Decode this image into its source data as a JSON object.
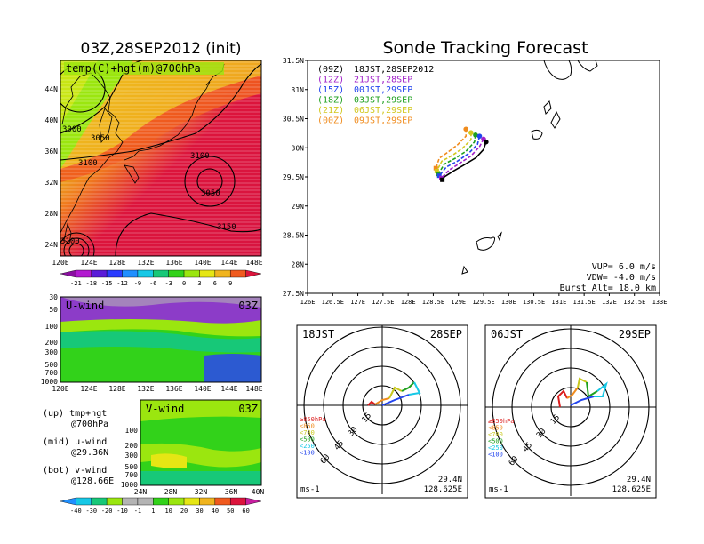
{
  "left_title": "03Z,28SEP2012 (init)",
  "right_title": "Sonde Tracking Forecast",
  "map_top": {
    "label": "temp(C)+hgt(m)@700hPa",
    "lat_labels": [
      "44N",
      "40N",
      "36N",
      "32N",
      "28N",
      "24N"
    ],
    "lon_labels": [
      "120E",
      "124E",
      "128E",
      "132E",
      "136E",
      "140E",
      "144E",
      "148E"
    ],
    "contour_labels": [
      "3000",
      "3050",
      "3100",
      "3100",
      "3050",
      "3150",
      "3100"
    ],
    "colorbar_labels": [
      "-21",
      "-18",
      "-15",
      "-12",
      "-9",
      "-6",
      "-3",
      "0",
      "3",
      "6",
      "9"
    ],
    "colorbar_colors": [
      "#8a0fa0",
      "#b21ad0",
      "#5a1cd8",
      "#2a3cff",
      "#1f8fff",
      "#16c8e6",
      "#17c878",
      "#32d21a",
      "#9be60f",
      "#e6e614",
      "#f0b41e",
      "#f05a1e",
      "#dc143c"
    ]
  },
  "uwind": {
    "label": "U-wind",
    "time": "03Z",
    "p_labels": [
      "30",
      "50",
      "100",
      "200",
      "300",
      "500",
      "700",
      "1000"
    ],
    "lon_labels": [
      "120E",
      "124E",
      "128E",
      "132E",
      "136E",
      "140E",
      "144E",
      "148E"
    ]
  },
  "vwind": {
    "label": "V-wind",
    "time": "03Z",
    "p_labels": [
      "100",
      "200",
      "300",
      "500",
      "700",
      "1000"
    ],
    "lat_labels": [
      "24N",
      "28N",
      "32N",
      "36N",
      "40N"
    ]
  },
  "legend": {
    "l1a": "(up) tmp+hgt",
    "l1b": "@700hPa",
    "l2a": "(mid) u-wind",
    "l2b": "@29.36N",
    "l3a": "(bot) v-wind",
    "l3b": "@128.66E"
  },
  "bottom_colorbar": {
    "labels": [
      "-40",
      "-30",
      "-20",
      "-10",
      "-1",
      "1",
      "10",
      "20",
      "30",
      "40",
      "50",
      "60"
    ],
    "colors": [
      "#1f8fff",
      "#16c8e6",
      "#17c878",
      "#9be60f",
      "#b4b4b4",
      "#b4b4b4",
      "#32d21a",
      "#9be60f",
      "#e6e614",
      "#f0b41e",
      "#f05a1e",
      "#dc143c",
      "#c81ea0"
    ]
  },
  "track_map": {
    "lat_labels": [
      "31.5N",
      "31N",
      "30.5N",
      "30N",
      "29.5N",
      "29N",
      "28.5N",
      "28N",
      "27.5N"
    ],
    "lon_labels": [
      "126E",
      "126.5E",
      "127E",
      "127.5E",
      "128E",
      "128.5E",
      "129E",
      "129.5E",
      "130E",
      "130.5E",
      "131E",
      "131.5E",
      "132E",
      "132.5E",
      "133E"
    ],
    "runs": [
      {
        "a": "(09Z)",
        "b": "18JST,28SEP2012",
        "color": "#000000"
      },
      {
        "a": "(12Z)",
        "b": "21JST,28SEP",
        "color": "#a020c8"
      },
      {
        "a": "(15Z)",
        "b": "00JST,29SEP",
        "color": "#2244ee"
      },
      {
        "a": "(18Z)",
        "b": "03JST,29SEP",
        "color": "#1ea01e"
      },
      {
        "a": "(21Z)",
        "b": "06JST,29SEP",
        "color": "#d2c81e"
      },
      {
        "a": "(00Z)",
        "b": "09JST,29SEP",
        "color": "#f08c1e"
      }
    ],
    "vup": "VUP= 6.0 m/s",
    "vdw": "VDW= -4.0 m/s",
    "burst": "Burst Alt= 18.0 km"
  },
  "hodo_left": {
    "t1": "18JST",
    "t2": "28SEP",
    "lat": "29.4N",
    "lon": "128.625E",
    "unit": "ms-1"
  },
  "hodo_right": {
    "t1": "06JST",
    "t2": "29SEP",
    "lat": "29.4N",
    "lon": "128.625E",
    "unit": "ms-1"
  },
  "hodo_rings": [
    "15",
    "30",
    "45",
    "60"
  ],
  "hodo_levels": [
    {
      "label": "≥850hPa",
      "color": "#dc1e1e"
    },
    {
      "label": "<850",
      "color": "#f08c1e"
    },
    {
      "label": "<700",
      "color": "#c8c81e"
    },
    {
      "label": "<500",
      "color": "#1ea01e"
    },
    {
      "label": "<250",
      "color": "#16c8e6"
    },
    {
      "label": "<100",
      "color": "#2244ee"
    }
  ],
  "chart_data": {
    "type": "line",
    "title": "Sonde Tracking Forecast",
    "xlabel": "",
    "ylabel": "",
    "xlim": [
      126,
      133
    ],
    "ylim": [
      27.5,
      31.5
    ],
    "grid": false,
    "legend_placement": "top-left",
    "series": [
      {
        "name": "(09Z) 18JST,28SEP2012",
        "color": "#000000",
        "x": [
          129.55,
          129.5,
          129.35,
          129.1,
          128.9,
          128.72,
          128.68
        ],
        "y": [
          30.1,
          29.97,
          29.83,
          29.7,
          29.6,
          29.5,
          29.45
        ]
      },
      {
        "name": "(12Z) 21JST,28SEP",
        "color": "#a020c8",
        "x": [
          129.5,
          129.42,
          129.25,
          129.02,
          128.82,
          128.66
        ],
        "y": [
          30.15,
          30.02,
          29.86,
          29.73,
          29.62,
          29.48
        ]
      },
      {
        "name": "(15Z) 00JST,29SEP",
        "color": "#2244ee",
        "x": [
          129.42,
          129.38,
          129.2,
          128.98,
          128.76,
          128.62
        ],
        "y": [
          30.2,
          30.06,
          29.9,
          29.77,
          29.67,
          29.52
        ]
      },
      {
        "name": "(18Z) 03JST,29SEP",
        "color": "#1ea01e",
        "x": [
          129.34,
          129.32,
          129.15,
          128.94,
          128.72,
          128.6
        ],
        "y": [
          30.22,
          30.1,
          29.94,
          29.82,
          29.72,
          29.55
        ]
      },
      {
        "name": "(21Z) 06JST,29SEP",
        "color": "#d2c81e",
        "x": [
          129.25,
          129.25,
          129.08,
          128.88,
          128.67,
          128.57
        ],
        "y": [
          30.26,
          30.14,
          29.99,
          29.87,
          29.77,
          29.6
        ]
      },
      {
        "name": "(00Z) 09JST,29SEP",
        "color": "#f08c1e",
        "x": [
          129.15,
          129.15,
          128.98,
          128.8,
          128.62,
          128.55
        ],
        "y": [
          30.32,
          30.2,
          30.05,
          29.93,
          29.82,
          29.65
        ]
      }
    ]
  }
}
